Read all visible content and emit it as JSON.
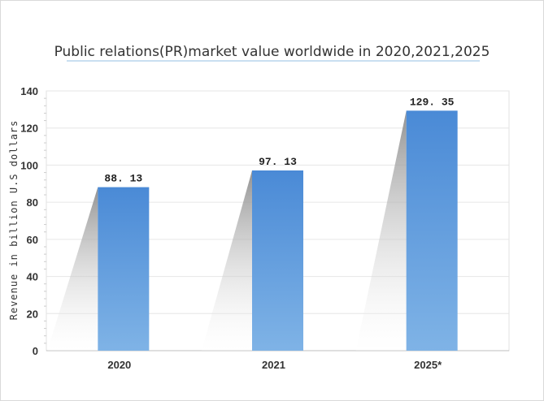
{
  "chart_data": {
    "type": "bar",
    "title": "Public relations(PR)market value worldwide in 2020,2021,2025",
    "xlabel": "",
    "ylabel": "Revenue in billion U.S dollars",
    "categories": [
      "2020",
      "2021",
      "2025*"
    ],
    "values": [
      88.13,
      97.13,
      129.35
    ],
    "value_labels": [
      "88. 13",
      "97. 13",
      "129. 35"
    ],
    "ylim": [
      0,
      140
    ],
    "yticks": [
      0,
      20,
      40,
      60,
      80,
      100,
      120,
      140
    ],
    "grid": true,
    "legend": "none",
    "colors": {
      "bar_top": "#4a8ad6",
      "bar_bottom": "#7fb3e6",
      "grid": "#e6e6e6",
      "shadow": "#9a9a9a"
    }
  }
}
